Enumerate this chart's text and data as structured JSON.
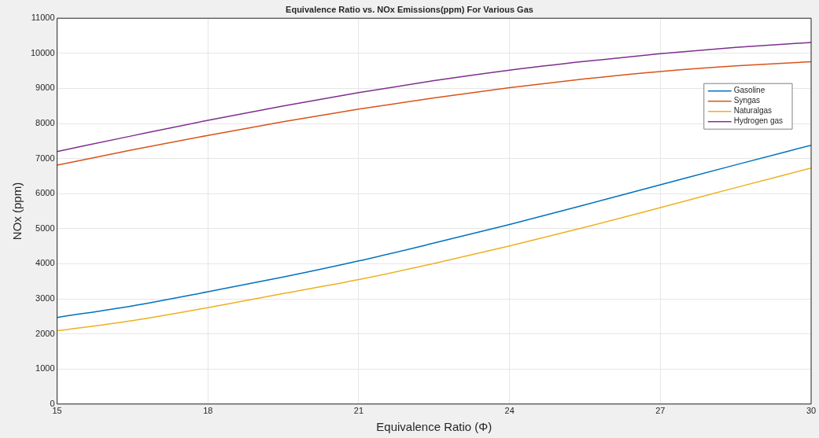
{
  "chart_data": {
    "type": "line",
    "title": "Equivalence Ratio vs. NOx Emissions(ppm) For Various Gas",
    "xlabel": "Equivalence Ratio (Φ)",
    "ylabel": "NOx (ppm)",
    "x": [
      15,
      16.5,
      18,
      19.5,
      21,
      22.5,
      24,
      25.5,
      27,
      28.5,
      30
    ],
    "series": [
      {
        "name": "Gasoline",
        "color": "#0072bd",
        "values": [
          2470,
          2800,
          3200,
          3620,
          4080,
          4590,
          5120,
          5680,
          6250,
          6820,
          7380
        ]
      },
      {
        "name": "Syngas",
        "color": "#d95319",
        "values": [
          6810,
          7250,
          7660,
          8050,
          8410,
          8730,
          9020,
          9270,
          9480,
          9640,
          9760
        ]
      },
      {
        "name": "Naturalgas",
        "color": "#edb120",
        "values": [
          2090,
          2380,
          2750,
          3150,
          3550,
          4010,
          4510,
          5040,
          5600,
          6170,
          6730
        ]
      },
      {
        "name": "Hydrogen gas",
        "color": "#7e2f8e",
        "values": [
          7200,
          7650,
          8090,
          8500,
          8880,
          9220,
          9520,
          9770,
          9990,
          10170,
          10310
        ]
      }
    ],
    "xlim": [
      15,
      30
    ],
    "xticks": [
      15,
      18,
      21,
      24,
      27,
      30
    ],
    "ylim": [
      0,
      11000
    ],
    "yticks": [
      0,
      1000,
      2000,
      3000,
      4000,
      5000,
      6000,
      7000,
      8000,
      9000,
      10000,
      11000
    ],
    "grid": true,
    "legend": "top right",
    "marker": "none",
    "line_style": "solid"
  }
}
